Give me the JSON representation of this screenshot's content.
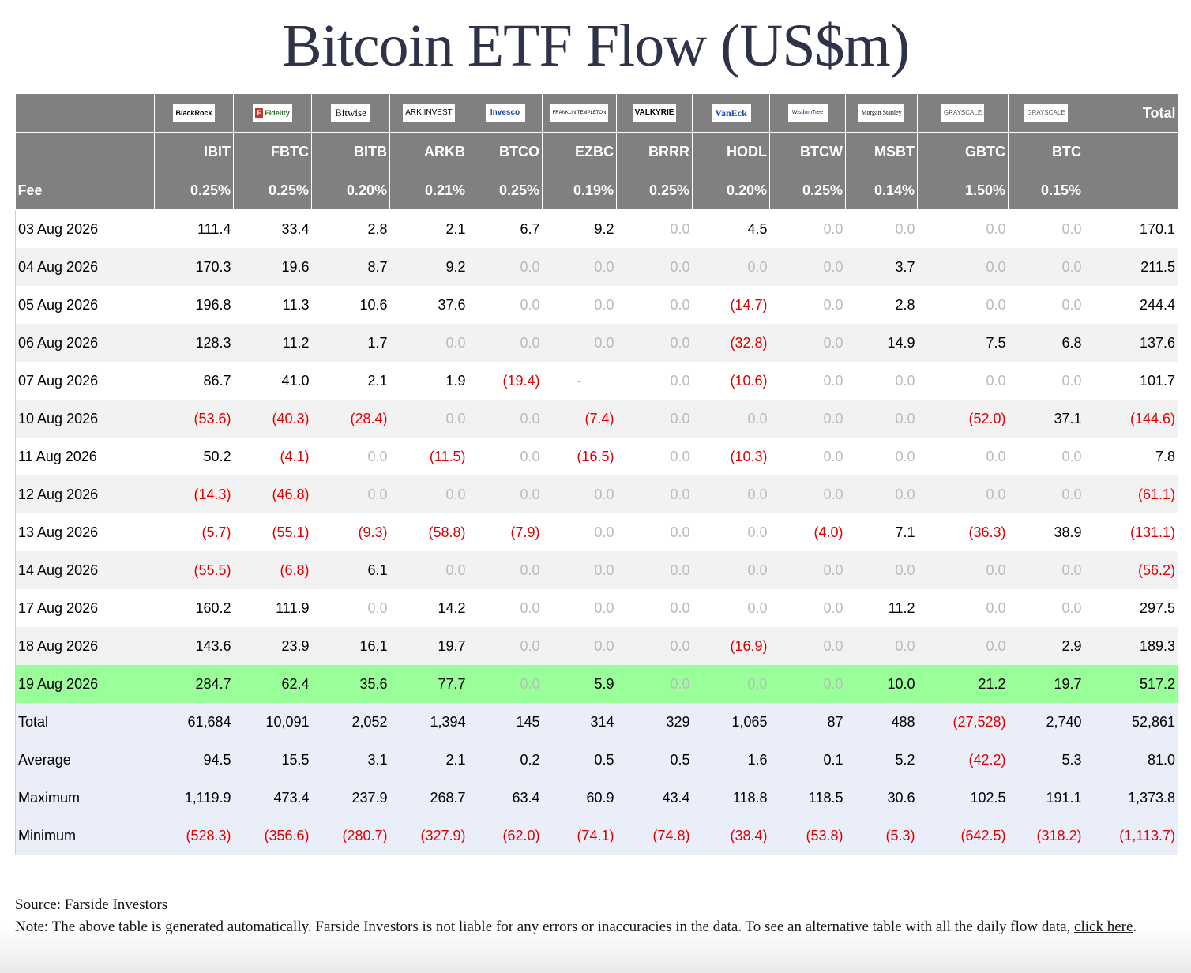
{
  "title": "Bitcoin ETF Flow (US$m)",
  "header": {
    "fee_label": "Fee",
    "total_label": "Total",
    "funds": [
      {
        "logo": "BlackRock",
        "ticker": "IBIT",
        "fee": "0.25%"
      },
      {
        "logo": "Fidelity",
        "ticker": "FBTC",
        "fee": "0.25%"
      },
      {
        "logo": "Bitwise",
        "ticker": "BITB",
        "fee": "0.20%"
      },
      {
        "logo": "ARK INVEST",
        "ticker": "ARKB",
        "fee": "0.21%"
      },
      {
        "logo": "Invesco",
        "ticker": "BTCO",
        "fee": "0.25%"
      },
      {
        "logo": "FRANKLIN TEMPLETON",
        "ticker": "EZBC",
        "fee": "0.19%"
      },
      {
        "logo": "VALKYRIE",
        "ticker": "BRRR",
        "fee": "0.25%"
      },
      {
        "logo": "VanEck",
        "ticker": "HODL",
        "fee": "0.20%"
      },
      {
        "logo": "WisdomTree",
        "ticker": "BTCW",
        "fee": "0.25%"
      },
      {
        "logo": "Morgan Stanley",
        "ticker": "MSBT",
        "fee": "0.14%"
      },
      {
        "logo": "GRAYSCALE",
        "ticker": "GBTC",
        "fee": "1.50%"
      },
      {
        "logo": "GRAYSCALE",
        "ticker": "BTC",
        "fee": "0.15%"
      }
    ]
  },
  "rows": [
    {
      "date": "03 Aug 2026",
      "values": [
        "111.4",
        "33.4",
        "2.8",
        "2.1",
        "6.7",
        "9.2",
        "0.0",
        "4.5",
        "0.0",
        "0.0",
        "0.0",
        "0.0"
      ],
      "total": "170.1"
    },
    {
      "date": "04 Aug 2026",
      "values": [
        "170.3",
        "19.6",
        "8.7",
        "9.2",
        "0.0",
        "0.0",
        "0.0",
        "0.0",
        "0.0",
        "3.7",
        "0.0",
        "0.0"
      ],
      "total": "211.5"
    },
    {
      "date": "05 Aug 2026",
      "values": [
        "196.8",
        "11.3",
        "10.6",
        "37.6",
        "0.0",
        "0.0",
        "0.0",
        "(14.7)",
        "0.0",
        "2.8",
        "0.0",
        "0.0"
      ],
      "total": "244.4"
    },
    {
      "date": "06 Aug 2026",
      "values": [
        "128.3",
        "11.2",
        "1.7",
        "0.0",
        "0.0",
        "0.0",
        "0.0",
        "(32.8)",
        "0.0",
        "14.9",
        "7.5",
        "6.8"
      ],
      "total": "137.6"
    },
    {
      "date": "07 Aug 2026",
      "values": [
        "86.7",
        "41.0",
        "2.1",
        "1.9",
        "(19.4)",
        "-",
        "0.0",
        "(10.6)",
        "0.0",
        "0.0",
        "0.0",
        "0.0"
      ],
      "total": "101.7"
    },
    {
      "date": "10 Aug 2026",
      "values": [
        "(53.6)",
        "(40.3)",
        "(28.4)",
        "0.0",
        "0.0",
        "(7.4)",
        "0.0",
        "0.0",
        "0.0",
        "0.0",
        "(52.0)",
        "37.1"
      ],
      "total": "(144.6)"
    },
    {
      "date": "11 Aug 2026",
      "values": [
        "50.2",
        "(4.1)",
        "0.0",
        "(11.5)",
        "0.0",
        "(16.5)",
        "0.0",
        "(10.3)",
        "0.0",
        "0.0",
        "0.0",
        "0.0"
      ],
      "total": "7.8"
    },
    {
      "date": "12 Aug 2026",
      "values": [
        "(14.3)",
        "(46.8)",
        "0.0",
        "0.0",
        "0.0",
        "0.0",
        "0.0",
        "0.0",
        "0.0",
        "0.0",
        "0.0",
        "0.0"
      ],
      "total": "(61.1)"
    },
    {
      "date": "13 Aug 2026",
      "values": [
        "(5.7)",
        "(55.1)",
        "(9.3)",
        "(58.8)",
        "(7.9)",
        "0.0",
        "0.0",
        "0.0",
        "(4.0)",
        "7.1",
        "(36.3)",
        "38.9"
      ],
      "total": "(131.1)"
    },
    {
      "date": "14 Aug 2026",
      "values": [
        "(55.5)",
        "(6.8)",
        "6.1",
        "0.0",
        "0.0",
        "0.0",
        "0.0",
        "0.0",
        "0.0",
        "0.0",
        "0.0",
        "0.0"
      ],
      "total": "(56.2)"
    },
    {
      "date": "17 Aug 2026",
      "values": [
        "160.2",
        "111.9",
        "0.0",
        "14.2",
        "0.0",
        "0.0",
        "0.0",
        "0.0",
        "0.0",
        "11.2",
        "0.0",
        "0.0"
      ],
      "total": "297.5"
    },
    {
      "date": "18 Aug 2026",
      "values": [
        "143.6",
        "23.9",
        "16.1",
        "19.7",
        "0.0",
        "0.0",
        "0.0",
        "(16.9)",
        "0.0",
        "0.0",
        "0.0",
        "2.9"
      ],
      "total": "189.3"
    },
    {
      "date": "19 Aug 2026",
      "values": [
        "284.7",
        "62.4",
        "35.6",
        "77.7",
        "0.0",
        "5.9",
        "0.0",
        "0.0",
        "0.0",
        "10.0",
        "21.2",
        "19.7"
      ],
      "total": "517.2",
      "highlight": true
    }
  ],
  "stats": [
    {
      "label": "Total",
      "values": [
        "61,684",
        "10,091",
        "2,052",
        "1,394",
        "145",
        "314",
        "329",
        "1,065",
        "87",
        "488",
        "(27,528)",
        "2,740"
      ],
      "total": "52,861"
    },
    {
      "label": "Average",
      "values": [
        "94.5",
        "15.5",
        "3.1",
        "2.1",
        "0.2",
        "0.5",
        "0.5",
        "1.6",
        "0.1",
        "5.2",
        "(42.2)",
        "5.3"
      ],
      "total": "81.0"
    },
    {
      "label": "Maximum",
      "values": [
        "1,119.9",
        "473.4",
        "237.9",
        "268.7",
        "63.4",
        "60.9",
        "43.4",
        "118.8",
        "118.5",
        "30.6",
        "102.5",
        "191.1"
      ],
      "total": "1,373.8"
    },
    {
      "label": "Minimum",
      "values": [
        "(528.3)",
        "(356.6)",
        "(280.7)",
        "(327.9)",
        "(62.0)",
        "(74.1)",
        "(74.8)",
        "(38.4)",
        "(53.8)",
        "(5.3)",
        "(642.5)",
        "(318.2)"
      ],
      "total": "(1,113.7)"
    }
  ],
  "footer": {
    "source": "Source: Farside Investors",
    "note": "Note: The above table is generated automatically. Farside Investors is not liable for any errors or inaccuracies in the data. To see an alternative table with all the daily flow data, ",
    "link_text": "click here",
    "end": "."
  },
  "colors": {
    "header_bg": "#808080",
    "negative": "#e00000",
    "zero": "#bbbbbb",
    "highlight_row": "#99ff99",
    "stats_bg": "#e9eef8",
    "title": "#2f3349"
  }
}
